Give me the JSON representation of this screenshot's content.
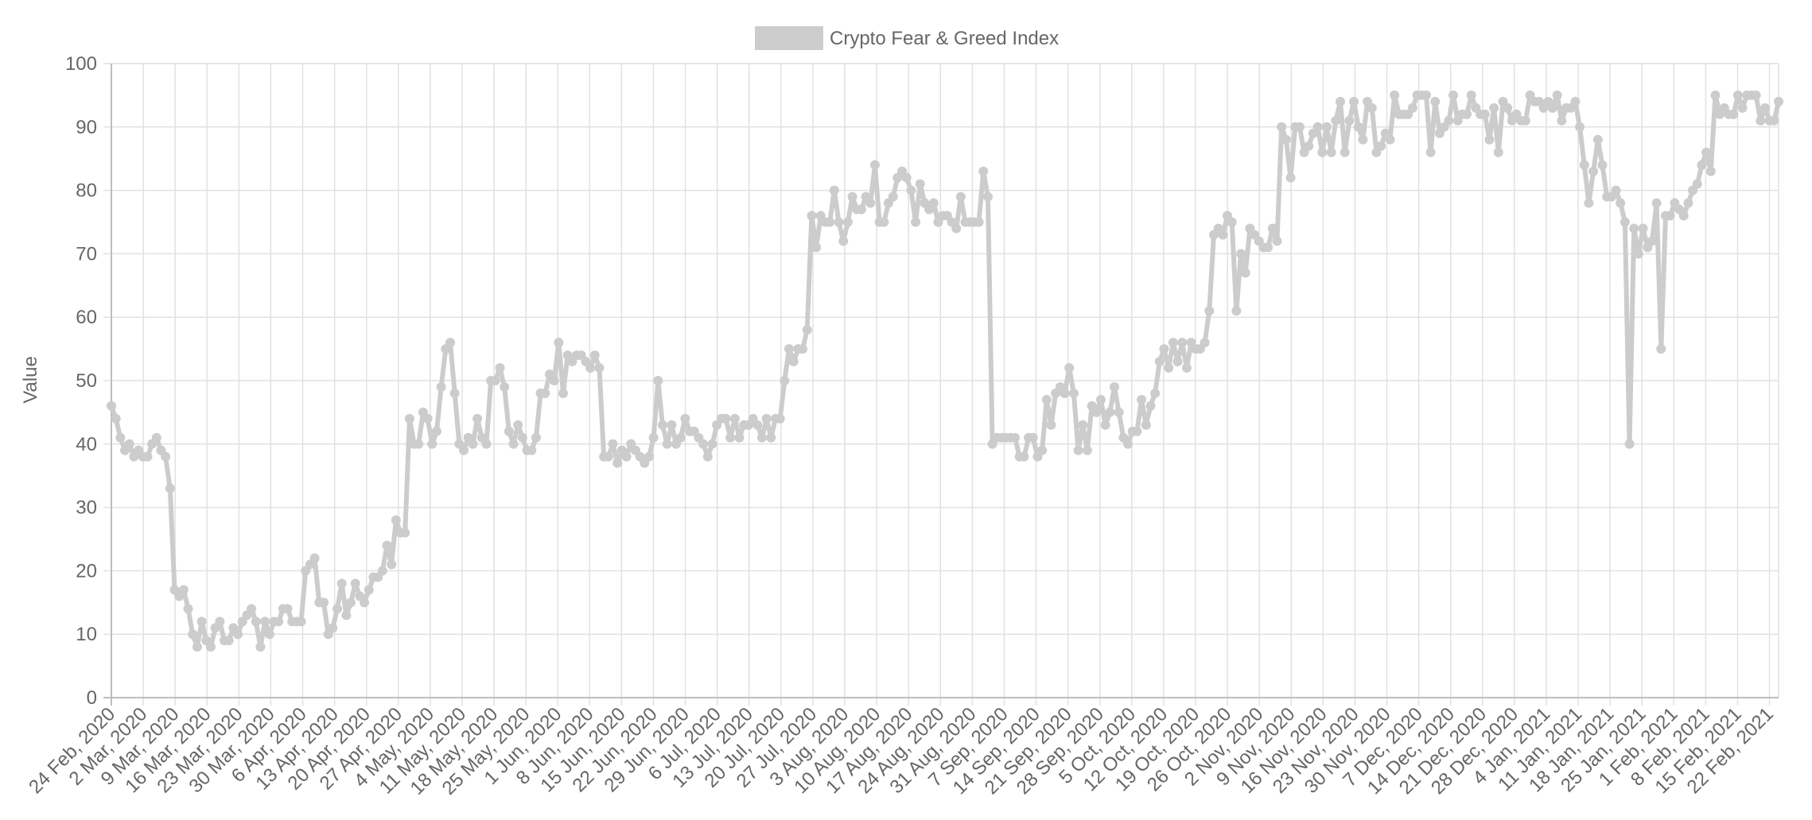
{
  "chart_data": {
    "type": "line",
    "title": "",
    "xlabel": "",
    "ylabel": "Value",
    "ylim": [
      0,
      100
    ],
    "y_ticks": [
      0,
      10,
      20,
      30,
      40,
      50,
      60,
      70,
      80,
      90,
      100
    ],
    "x_start": "2020-02-24",
    "x_end": "2021-02-24",
    "x_tick_labels": [
      "24 Feb, 2020",
      "2 Mar, 2020",
      "9 Mar, 2020",
      "16 Mar, 2020",
      "23 Mar, 2020",
      "30 Mar, 2020",
      "6 Apr, 2020",
      "13 Apr, 2020",
      "20 Apr, 2020",
      "27 Apr, 2020",
      "4 May, 2020",
      "11 May, 2020",
      "18 May, 2020",
      "25 May, 2020",
      "1 Jun, 2020",
      "8 Jun, 2020",
      "15 Jun, 2020",
      "22 Jun, 2020",
      "29 Jun, 2020",
      "6 Jul, 2020",
      "13 Jul, 2020",
      "20 Jul, 2020",
      "27 Jul, 2020",
      "3 Aug, 2020",
      "10 Aug, 2020",
      "17 Aug, 2020",
      "24 Aug, 2020",
      "31 Aug, 2020",
      "7 Sep, 2020",
      "14 Sep, 2020",
      "21 Sep, 2020",
      "28 Sep, 2020",
      "5 Oct, 2020",
      "12 Oct, 2020",
      "19 Oct, 2020",
      "26 Oct, 2020",
      "2 Nov, 2020",
      "9 Nov, 2020",
      "16 Nov, 2020",
      "23 Nov, 2020",
      "30 Nov, 2020",
      "7 Dec, 2020",
      "14 Dec, 2020",
      "21 Dec, 2020",
      "28 Dec, 2020",
      "4 Jan, 2021",
      "11 Jan, 2021",
      "18 Jan, 2021",
      "25 Jan, 2021",
      "1 Feb, 2021",
      "8 Feb, 2021",
      "15 Feb, 2021",
      "22 Feb, 2021"
    ],
    "grid": true,
    "legend_position": "top-center",
    "series": [
      {
        "name": "Crypto Fear & Greed Index",
        "color": "#cccccc",
        "values": [
          46,
          44,
          41,
          39,
          40,
          38,
          39,
          38,
          38,
          40,
          41,
          39,
          38,
          33,
          17,
          16,
          17,
          14,
          10,
          8,
          12,
          9,
          8,
          11,
          12,
          9,
          9,
          11,
          10,
          12,
          13,
          14,
          12,
          8,
          12,
          10,
          12,
          12,
          14,
          14,
          12,
          12,
          12,
          20,
          21,
          22,
          15,
          15,
          10,
          11,
          14,
          18,
          13,
          15,
          18,
          16,
          15,
          17,
          19,
          19,
          20,
          24,
          21,
          28,
          26,
          26,
          44,
          40,
          40,
          45,
          44,
          40,
          42,
          49,
          55,
          56,
          48,
          40,
          39,
          41,
          40,
          44,
          41,
          40,
          50,
          50,
          52,
          49,
          42,
          40,
          43,
          41,
          39,
          39,
          41,
          48,
          48,
          51,
          50,
          56,
          48,
          54,
          53,
          54,
          54,
          53,
          52,
          54,
          52,
          38,
          38,
          40,
          37,
          39,
          38,
          40,
          39,
          38,
          37,
          38,
          41,
          50,
          43,
          40,
          43,
          40,
          41,
          44,
          42,
          42,
          41,
          40,
          38,
          40,
          43,
          44,
          44,
          41,
          44,
          41,
          43,
          43,
          44,
          43,
          41,
          44,
          41,
          44,
          44,
          50,
          55,
          53,
          55,
          55,
          58,
          76,
          71,
          76,
          75,
          75,
          80,
          75,
          72,
          75,
          79,
          77,
          77,
          79,
          78,
          84,
          75,
          75,
          78,
          79,
          82,
          83,
          82,
          80,
          75,
          81,
          78,
          77,
          78,
          75,
          76,
          76,
          75,
          74,
          79,
          75,
          75,
          75,
          75,
          83,
          79,
          40,
          41,
          41,
          41,
          41,
          41,
          38,
          38,
          41,
          41,
          38,
          39,
          47,
          43,
          48,
          49,
          48,
          52,
          48,
          39,
          43,
          39,
          46,
          45,
          47,
          43,
          45,
          49,
          45,
          41,
          40,
          42,
          42,
          47,
          43,
          46,
          48,
          53,
          55,
          52,
          56,
          53,
          56,
          52,
          56,
          55,
          55,
          56,
          61,
          73,
          74,
          73,
          76,
          75,
          61,
          70,
          67,
          74,
          73,
          72,
          71,
          71,
          74,
          72,
          90,
          88,
          82,
          90,
          90,
          86,
          87,
          89,
          90,
          86,
          90,
          86,
          91,
          94,
          86,
          91,
          94,
          90,
          88,
          94,
          93,
          86,
          87,
          89,
          88,
          95,
          92,
          92,
          92,
          93,
          95,
          95,
          95,
          86,
          94,
          89,
          90,
          91,
          95,
          91,
          92,
          92,
          95,
          93,
          92,
          92,
          88,
          93,
          86,
          94,
          93,
          91,
          92,
          91,
          91,
          95,
          94,
          94,
          93,
          94,
          93,
          95,
          91,
          93,
          93,
          94,
          90,
          84,
          78,
          83,
          88,
          84,
          79,
          79,
          80,
          78,
          75,
          40,
          74,
          70,
          74,
          71,
          72,
          78,
          55,
          76,
          76,
          78,
          77,
          76,
          78,
          80,
          81,
          84,
          86,
          83,
          95,
          92,
          93,
          92,
          92,
          95,
          93,
          95,
          95,
          95,
          91,
          93,
          91,
          91,
          94
        ]
      }
    ]
  }
}
